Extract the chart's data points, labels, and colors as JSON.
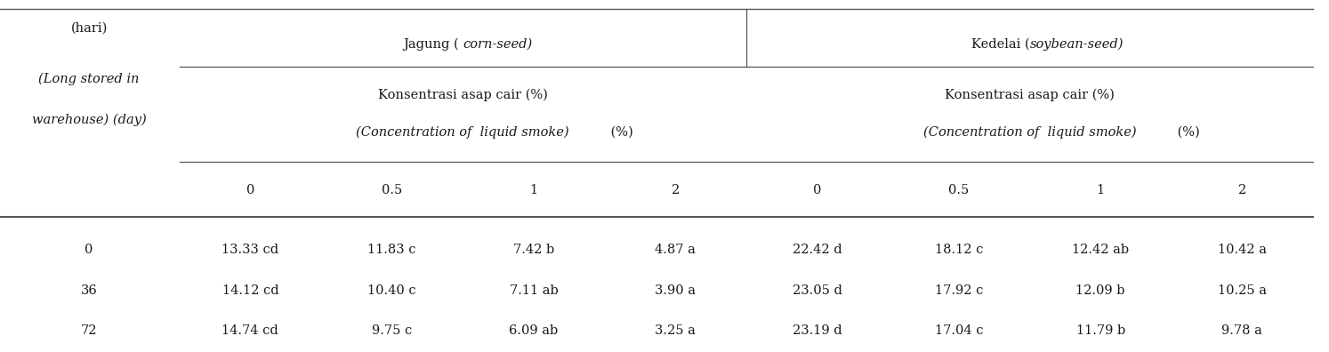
{
  "left_header_lines": [
    "(hari)",
    "(Long stored in",
    "warehouse) (day)"
  ],
  "jagung_normal": "Jagung ( ",
  "jagung_italic": "corn-seed)",
  "kedelai_normal": "Kedelai (",
  "kedelai_italic": "soybean-seed)",
  "konsen": "Konsentrasi asap cair (%)",
  "conc_italic": "(Concentration of  liquid smoke)",
  "conc_pct": " (%)",
  "conc_labels": [
    "0",
    "0.5",
    "1",
    "2",
    "0",
    "0.5",
    "1",
    "2"
  ],
  "row_labels": [
    "0",
    "36",
    "72"
  ],
  "data": [
    [
      "13.33 cd",
      "11.83 c",
      "7.42 b",
      "4.87 a",
      "22.42 d",
      "18.12 c",
      "12.42 ab",
      "10.42 a"
    ],
    [
      "14.12 cd",
      "10.40 c",
      "7.11 ab",
      "3.90 a",
      "23.05 d",
      "17.92 c",
      "12.09 b",
      "10.25 a"
    ],
    [
      "14.74 cd",
      "9.75 c",
      "6.09 ab",
      "3.25 a",
      "23.19 d",
      "17.04 c",
      "11.79 b",
      "9.78 a"
    ]
  ],
  "bg_color": "#ffffff",
  "text_color": "#1a1a1a",
  "line_color": "#555555",
  "font_size": 10.5,
  "figsize": [
    14.94,
    3.96
  ],
  "dpi": 100
}
